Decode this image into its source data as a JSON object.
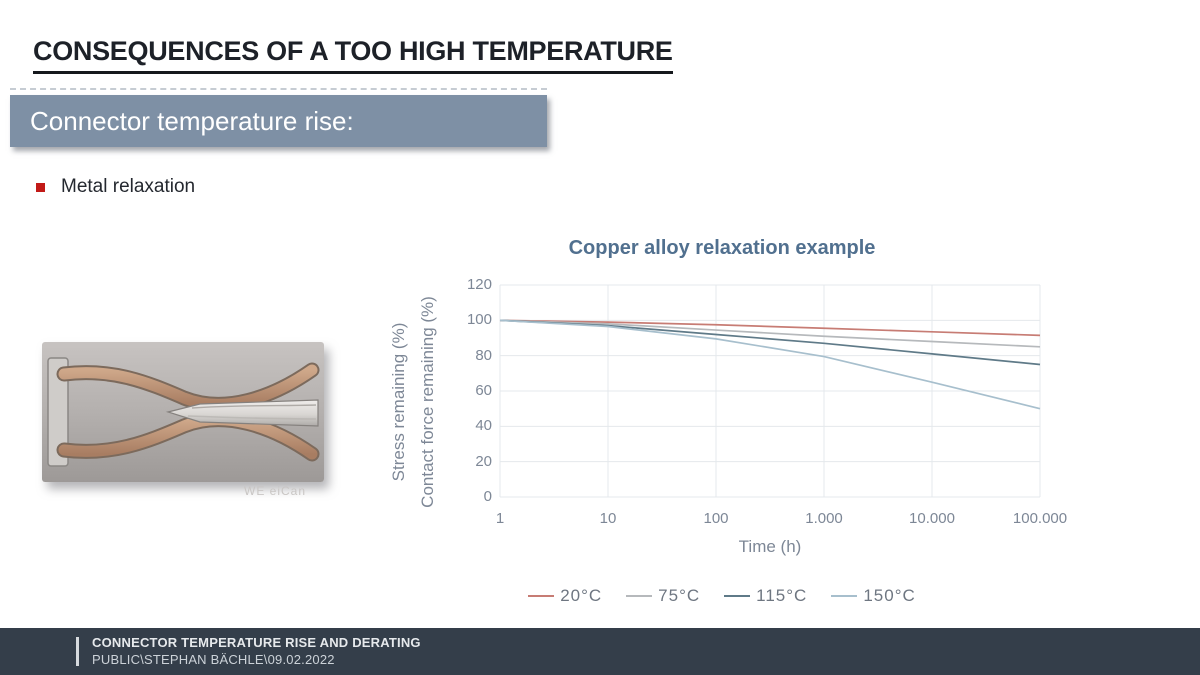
{
  "slide": {
    "title": "CONSEQUENCES OF A TOO HIGH TEMPERATURE",
    "banner": "Connector temperature rise:",
    "bullet": "Metal relaxation",
    "photo_watermark": "WE eiCan"
  },
  "colors": {
    "banner_bg": "#7e90a5",
    "footer_bg": "#343e4a",
    "bullet_red": "#c21a17",
    "chart_title_blue": "#51708f",
    "axis_text_gray": "#7d8796",
    "gridline": "#e4e8ec"
  },
  "chart_data": {
    "type": "line",
    "title": "Copper alloy relaxation example",
    "xlabel": "Time (h)",
    "ylabel_outer": "Stress remaining (%)",
    "ylabel_inner": "Contact force remaining (%)",
    "x_scale": "log",
    "grid": true,
    "legend_position": "bottom",
    "ylim": [
      0,
      120
    ],
    "y_ticks": [
      0,
      20,
      40,
      60,
      80,
      100,
      120
    ],
    "x": [
      1,
      10,
      100,
      1000,
      10000,
      100000
    ],
    "x_tick_labels": [
      "1",
      "10",
      "100",
      "1.000",
      "10.000",
      "100.000"
    ],
    "series": [
      {
        "name": "20°C",
        "color": "#c77c74",
        "values": [
          100,
          99,
          97.5,
          95.5,
          93.5,
          91.5
        ]
      },
      {
        "name": "75°C",
        "color": "#b6b9bc",
        "values": [
          100,
          98,
          94.5,
          91,
          88,
          85
        ]
      },
      {
        "name": "115°C",
        "color": "#5f7a88",
        "values": [
          100,
          97,
          92,
          87,
          81,
          75
        ]
      },
      {
        "name": "150°C",
        "color": "#a7bfcd",
        "values": [
          100,
          96.5,
          89.5,
          79.5,
          65,
          50
        ]
      }
    ]
  },
  "footer": {
    "line1": "CONNECTOR TEMPERATURE RISE AND DERATING",
    "line2": "PUBLIC\\STEPHAN BÄCHLE\\09.02.2022"
  }
}
